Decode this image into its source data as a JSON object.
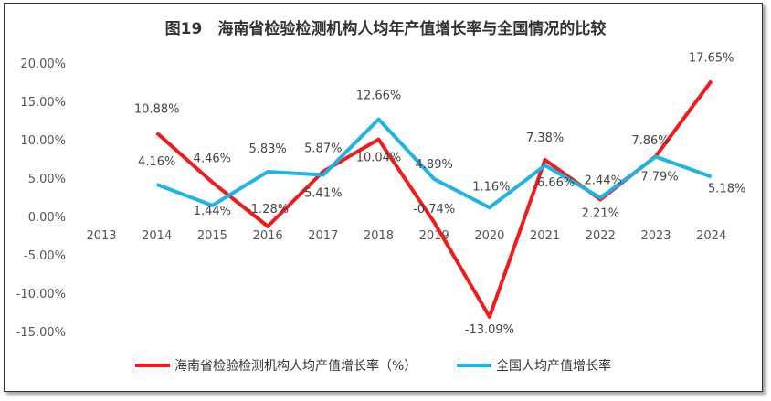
{
  "chart_data": {
    "type": "line",
    "title": "图19　海南省检验检测机构人均年产值增长率与全国情况的比较",
    "xlabel": "",
    "ylabel": "",
    "categories": [
      "2013",
      "2014",
      "2015",
      "2016",
      "2017",
      "2018",
      "2019",
      "2020",
      "2021",
      "2022",
      "2023",
      "2024"
    ],
    "ylim": [
      -15,
      20
    ],
    "yticks": [
      "20.00%",
      "15.00%",
      "10.00%",
      "5.00%",
      "0.00%",
      "-5.00%",
      "-10.00%",
      "-15.00%"
    ],
    "ytick_values": [
      20,
      15,
      10,
      5,
      0,
      -5,
      -10,
      -15
    ],
    "grid": false,
    "legend_position": "bottom",
    "series": [
      {
        "name": "海南省检验检测机构人均产值增长率（%）",
        "color": "#ee1c1c",
        "values": [
          null,
          10.88,
          4.46,
          -1.28,
          5.87,
          10.04,
          -0.74,
          -13.09,
          7.38,
          2.21,
          7.86,
          17.65
        ],
        "labels": [
          null,
          "10.88%",
          "4.46%",
          "-1.28%",
          "5.87%",
          "10.04%",
          "-0.74%",
          "-13.09%",
          "7.38%",
          "2.21%",
          "7.86%",
          "17.65%"
        ]
      },
      {
        "name": "全国人均产值增长率",
        "color": "#1fb3e6",
        "values": [
          null,
          4.16,
          1.44,
          5.83,
          5.41,
          12.66,
          4.89,
          1.16,
          6.66,
          2.44,
          7.79,
          5.18
        ],
        "labels": [
          null,
          "4.16%",
          "1.44%",
          "5.83%",
          "5.41%",
          "12.66%",
          "4.89%",
          "1.16%",
          "6.66%",
          "2.44%",
          "7.79%",
          "5.18%"
        ]
      }
    ]
  }
}
